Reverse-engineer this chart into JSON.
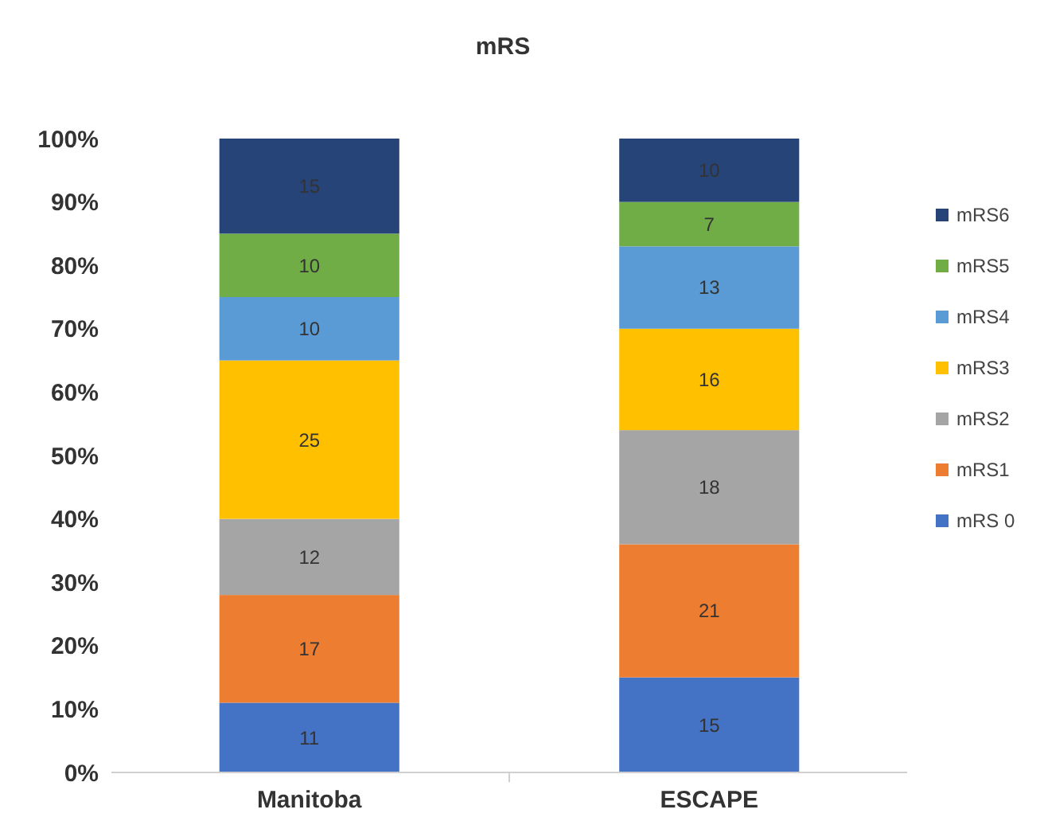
{
  "chart_data": {
    "type": "bar",
    "title": "mRS",
    "stacked": true,
    "categories": [
      "Manitoba",
      "ESCAPE"
    ],
    "series": [
      {
        "name": "mRS 0",
        "color": "#4472c4",
        "values": [
          11,
          15
        ]
      },
      {
        "name": "mRS1",
        "color": "#ed7d31",
        "values": [
          17,
          21
        ]
      },
      {
        "name": "mRS2",
        "color": "#a5a5a5",
        "values": [
          12,
          18
        ]
      },
      {
        "name": "mRS3",
        "color": "#ffc000",
        "values": [
          25,
          16
        ]
      },
      {
        "name": "mRS4",
        "color": "#5b9bd5",
        "values": [
          10,
          13
        ]
      },
      {
        "name": "mRS5",
        "color": "#70ad47",
        "values": [
          10,
          7
        ]
      },
      {
        "name": "mRS6",
        "color": "#264478",
        "values": [
          15,
          10
        ]
      }
    ],
    "ylim": [
      0,
      100
    ],
    "yticks": [
      {
        "value": 0,
        "label": "0%"
      },
      {
        "value": 10,
        "label": "10%"
      },
      {
        "value": 20,
        "label": "20%"
      },
      {
        "value": 30,
        "label": "30%"
      },
      {
        "value": 40,
        "label": "40%"
      },
      {
        "value": 50,
        "label": "50%"
      },
      {
        "value": 60,
        "label": "60%"
      },
      {
        "value": 70,
        "label": "70%"
      },
      {
        "value": 80,
        "label": "80%"
      },
      {
        "value": 90,
        "label": "90%"
      },
      {
        "value": 100,
        "label": "100%"
      }
    ],
    "data_labels": true,
    "grid": false,
    "legend": "right"
  }
}
